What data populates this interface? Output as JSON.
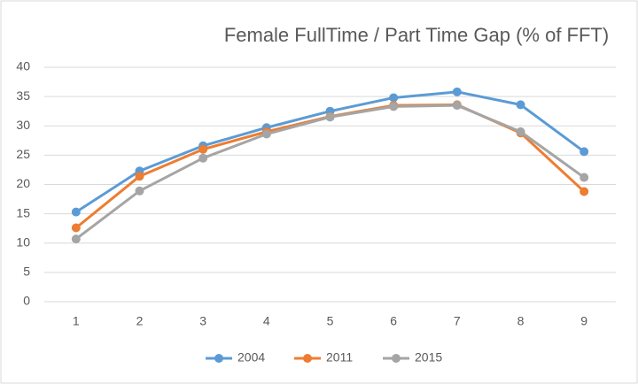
{
  "chart_data": {
    "type": "line",
    "title": "Female FullTime / Part Time Gap (% of FFT)",
    "categories": [
      "1",
      "2",
      "3",
      "4",
      "5",
      "6",
      "7",
      "8",
      "9"
    ],
    "series": [
      {
        "name": "2004",
        "color": "#5b9bd5",
        "values": [
          15.3,
          22.3,
          26.6,
          29.7,
          32.5,
          34.8,
          35.8,
          33.6,
          25.6
        ]
      },
      {
        "name": "2011",
        "color": "#ed7d31",
        "values": [
          12.6,
          21.4,
          26.0,
          29.0,
          31.6,
          33.5,
          33.6,
          28.8,
          18.8
        ]
      },
      {
        "name": "2015",
        "color": "#a5a5a5",
        "values": [
          10.7,
          18.9,
          24.5,
          28.6,
          31.5,
          33.3,
          33.5,
          29.0,
          21.2
        ]
      }
    ],
    "ylim": [
      0,
      40
    ],
    "yticks": [
      0,
      5,
      10,
      15,
      20,
      25,
      30,
      35,
      40
    ],
    "grid": true,
    "legend": "bottom"
  }
}
